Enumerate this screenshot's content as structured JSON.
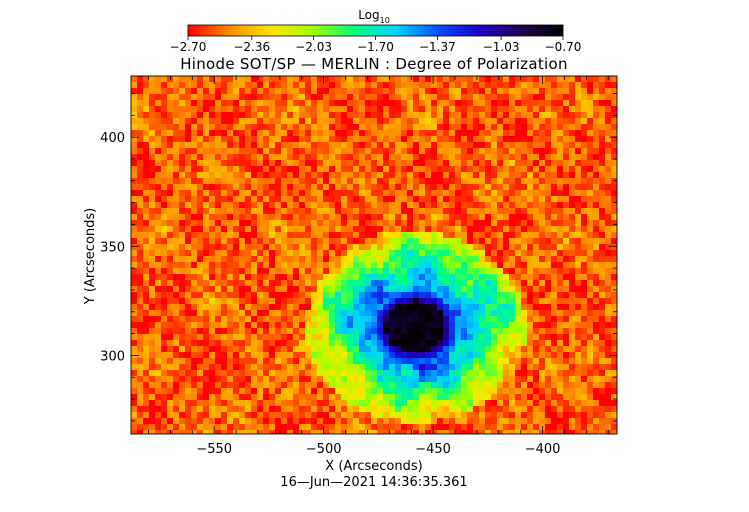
{
  "chart_data": {
    "type": "heatmap",
    "title": "Hinode SOT/SP — MERLIN : Degree of Polarization",
    "xlabel": "X (Arcseconds)",
    "ylabel": "Y (Arcseconds)",
    "xlim": [
      -588,
      -366
    ],
    "ylim": [
      264,
      428
    ],
    "x_ticks": [
      -550,
      -500,
      -450,
      -400
    ],
    "x_tick_labels": [
      "−550",
      "−500",
      "−450",
      "−400"
    ],
    "y_ticks": [
      300,
      350,
      400
    ],
    "y_tick_labels": [
      "300",
      "350",
      "400"
    ],
    "colorbar": {
      "title_base": "Log",
      "title_sub": "10",
      "range": [
        -2.7,
        -0.7
      ],
      "ticks": [
        -2.7,
        -2.36,
        -2.03,
        -1.7,
        -1.37,
        -1.03,
        -0.7
      ],
      "tick_labels": [
        "−2.70",
        "−2.36",
        "−2.03",
        "−1.70",
        "−1.37",
        "−1.03",
        "−0.70"
      ],
      "colors": [
        "#ff0000",
        "#ff8c00",
        "#ffe600",
        "#a0ff00",
        "#00ff7f",
        "#00d2ff",
        "#0050ff",
        "#1e00c8",
        "#1e0050",
        "#000000"
      ]
    },
    "features": {
      "background_level": -2.55,
      "sunspot_center": [
        -458,
        313
      ],
      "sunspot_umbra_level": -0.75
    },
    "timestamp": "16—Jun—2021 14:36:35.361"
  }
}
